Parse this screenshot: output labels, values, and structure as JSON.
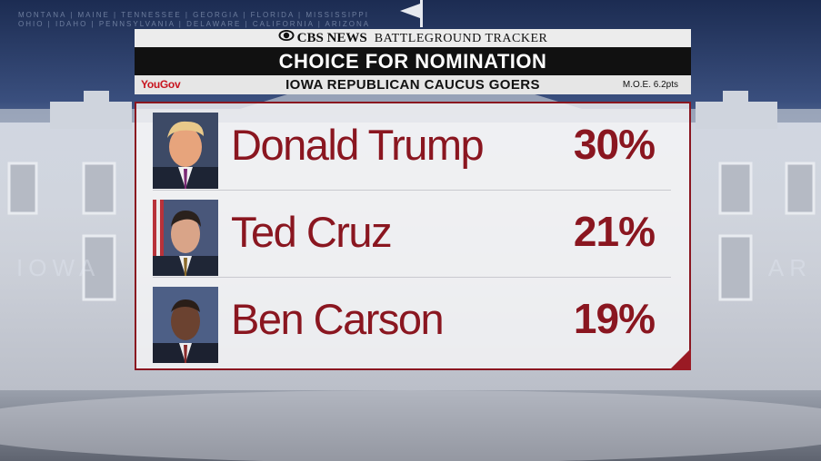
{
  "background": {
    "states_ticker": "MONTANA | MAINE | TENNESSEE | GEORGIA | FLORIDA | MISSISSIPPI\nOHIO | IDAHO | PENNSYLVANIA | DELAWARE | CALIFORNIA | ARIZONA",
    "big_left": "IOWA",
    "big_right": "AR"
  },
  "header": {
    "network": "CBS NEWS",
    "program": "BATTLEGROUND TRACKER",
    "title": "CHOICE FOR NOMINATION",
    "pollster": "YouGov",
    "subtitle": "IOWA REPUBLICAN CAUCUS GOERS",
    "moe": "M.O.E. 6.2pts"
  },
  "colors": {
    "accent": "#8a1620",
    "header_bar": "#111111",
    "yougov_red": "#c8141e"
  },
  "chart_data": {
    "type": "table",
    "title": "CHOICE FOR NOMINATION",
    "subtitle": "IOWA REPUBLICAN CAUCUS GOERS",
    "categories": [
      "Donald Trump",
      "Ted Cruz",
      "Ben Carson"
    ],
    "values": [
      30,
      21,
      19
    ],
    "labels": [
      "30%",
      "21%",
      "19%"
    ],
    "unit": "%"
  }
}
